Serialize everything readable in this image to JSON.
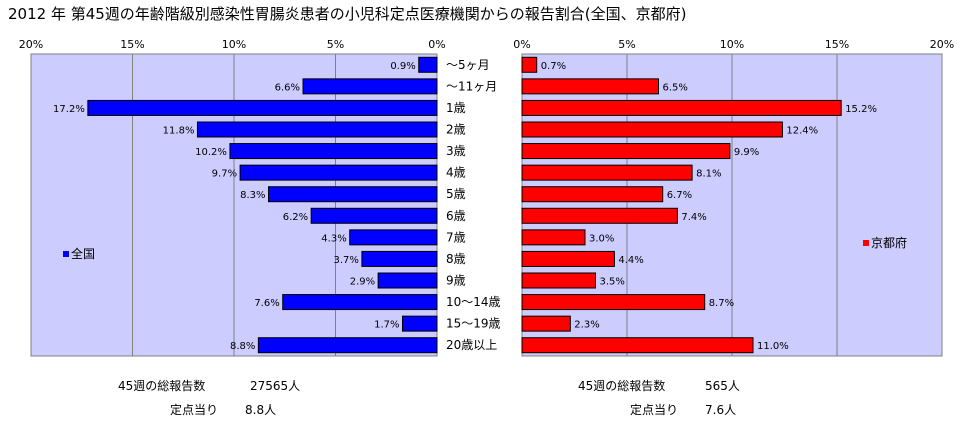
{
  "title": "2012 年 第45週の年齢階級別感染性胃腸炎患者の小児科定点医療機関からの報告割合(全国、京都府)",
  "colors": {
    "left_bar": "#0000ff",
    "right_bar": "#ff0000",
    "plot_bg": "#ccccff",
    "grid": "#808080"
  },
  "chart_data": {
    "type": "bar",
    "orientation": "horizontal-butterfly",
    "categories": [
      "～5ヶ月",
      "～11ヶ月",
      "1歳",
      "2歳",
      "3歳",
      "4歳",
      "5歳",
      "6歳",
      "7歳",
      "8歳",
      "9歳",
      "10～14歳",
      "15～19歳",
      "20歳以上"
    ],
    "left_ticks": [
      "20%",
      "15%",
      "10%",
      "5%",
      "0%"
    ],
    "right_ticks": [
      "0%",
      "5%",
      "10%",
      "15%",
      "20%"
    ],
    "xlim": [
      0,
      20
    ],
    "series": [
      {
        "name": "全国",
        "values": [
          0.9,
          6.6,
          17.2,
          11.8,
          10.2,
          9.7,
          8.3,
          6.2,
          4.3,
          3.7,
          2.9,
          7.6,
          1.7,
          8.8
        ],
        "labels": [
          "0.9%",
          "6.6%",
          "17.2%",
          "11.8%",
          "10.2%",
          "9.7%",
          "8.3%",
          "6.2%",
          "4.3%",
          "3.7%",
          "2.9%",
          "7.6%",
          "1.7%",
          "8.8%"
        ]
      },
      {
        "name": "京都府",
        "values": [
          0.7,
          6.5,
          15.2,
          12.4,
          9.9,
          8.1,
          6.7,
          7.4,
          3.0,
          4.4,
          3.5,
          8.7,
          2.3,
          11.0
        ],
        "labels": [
          "0.7%",
          "6.5%",
          "15.2%",
          "12.4%",
          "9.9%",
          "8.1%",
          "6.7%",
          "7.4%",
          "3.0%",
          "4.4%",
          "3.5%",
          "8.7%",
          "2.3%",
          "11.0%"
        ]
      }
    ],
    "grid": true
  },
  "footer": {
    "left_total_label": "45週の総報告数",
    "left_total_value": "27565人",
    "left_per_label": "定点当り",
    "left_per_value": "8.8人",
    "right_total_label": "45週の総報告数",
    "right_total_value": "565人",
    "right_per_label": "定点当り",
    "right_per_value": "7.6人"
  }
}
